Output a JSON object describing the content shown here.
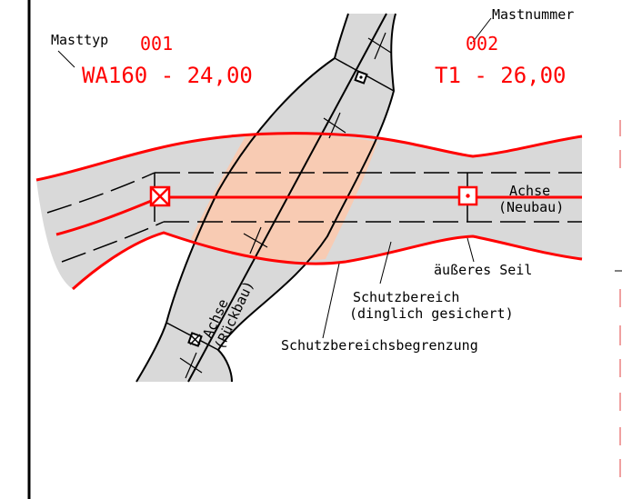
{
  "colors": {
    "accent_red": "#ff0000",
    "corridor_grey": "#d9d9d9",
    "overlap_salmon": "#f8cbb3",
    "line_black": "#000000"
  },
  "labels": {
    "mast_type_caption": "Masttyp",
    "mast_number_caption": "Mastnummer",
    "mast1_number": "001",
    "mast1_type": "WA160 - 24,00",
    "mast2_number": "002",
    "mast2_type": "T1 - 26,00",
    "axis_new_line1": "Achse",
    "axis_new_line2": "(Neubau)",
    "axis_old_line1": "Achse",
    "axis_old_line2": "(Rückbau)",
    "outer_cable": "äußeres Seil",
    "protection_zone_line1": "Schutzbereich",
    "protection_zone_line2": "(dinglich gesichert)",
    "protection_boundary": "Schutzbereichsbegrenzung"
  },
  "icons": {
    "mast_new_1": "cross-box-icon",
    "mast_new_2": "dot-box-icon",
    "mast_old_1": "small-dot-box-icon",
    "mast_old_2": "small-cross-box-icon"
  }
}
